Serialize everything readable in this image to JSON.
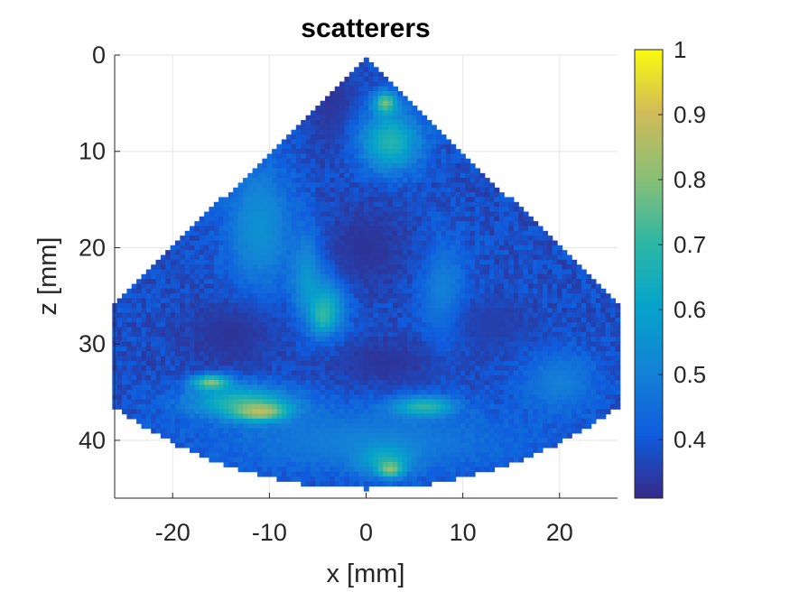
{
  "chart_data": {
    "type": "heatmap",
    "title": "scatterers",
    "xlabel": "x [mm]",
    "ylabel": "z [mm]",
    "xlim": [
      -26,
      26
    ],
    "ylim": [
      0,
      46
    ],
    "y_reversed": true,
    "grid": true,
    "x_ticks": [
      -20,
      -10,
      0,
      10,
      20
    ],
    "y_ticks": [
      0,
      10,
      20,
      30,
      40
    ],
    "x_tick_labels": [
      "-20",
      "-10",
      "0",
      "10",
      "20"
    ],
    "y_tick_labels": [
      "0",
      "10",
      "20",
      "30",
      "40"
    ],
    "colorbar": {
      "colormap": "parula",
      "range": [
        0.31,
        1.0
      ],
      "ticks": [
        0.4,
        0.5,
        0.6,
        0.7,
        0.8,
        0.9,
        1
      ],
      "tick_labels": [
        "0.4",
        "0.5",
        "0.6",
        "0.7",
        "0.8",
        "0.9",
        "1"
      ]
    },
    "sector": {
      "apex_x_mm": 0,
      "apex_z_mm": 0.5,
      "half_angle_deg": 46,
      "max_radius_mm": 44.5,
      "background_value": 0.38
    },
    "regions": [
      {
        "label": "upper-left dark strip",
        "x": -3.5,
        "z": 5,
        "rx": 3.5,
        "rz": 7,
        "value": 0.33
      },
      {
        "label": "upper bright band",
        "x": 2.5,
        "z": 9,
        "rx": 4,
        "rz": 4,
        "value": 0.68
      },
      {
        "label": "upper hot spot",
        "x": 2,
        "z": 5,
        "rx": 1.5,
        "rz": 1.5,
        "value": 0.78
      },
      {
        "label": "left wall",
        "x": -11,
        "z": 18,
        "rx": 4.5,
        "rz": 9,
        "value": 0.55
      },
      {
        "label": "septum left",
        "x": -6,
        "z": 23,
        "rx": 2,
        "rz": 6,
        "value": 0.6
      },
      {
        "label": "septum",
        "x": -4,
        "z": 26,
        "rx": 2.5,
        "rz": 4,
        "value": 0.68
      },
      {
        "label": "septum bright",
        "x": -4.5,
        "z": 27,
        "rx": 1.2,
        "rz": 2,
        "value": 0.75
      },
      {
        "label": "right chamber wall",
        "x": 8,
        "z": 25,
        "rx": 3,
        "rz": 7,
        "value": 0.52
      },
      {
        "label": "left cavity",
        "x": -14,
        "z": 29,
        "rx": 7,
        "rz": 5,
        "value": 0.33
      },
      {
        "label": "centre cavity",
        "x": 0,
        "z": 20,
        "rx": 6,
        "rz": 6,
        "value": 0.33
      },
      {
        "label": "lower cavity",
        "x": 2,
        "z": 32,
        "rx": 8,
        "rz": 3.5,
        "value": 0.33
      },
      {
        "label": "right cavity",
        "x": 13,
        "z": 28,
        "rx": 6,
        "rz": 4,
        "value": 0.35
      },
      {
        "label": "bottom band",
        "x": 0,
        "z": 40,
        "rx": 20,
        "rz": 4.5,
        "value": 0.5
      },
      {
        "label": "left bottom bright",
        "x": -13,
        "z": 36,
        "rx": 7,
        "rz": 2.2,
        "value": 0.68
      },
      {
        "label": "left hot streak",
        "x": -11,
        "z": 37,
        "rx": 3.5,
        "rz": 1.2,
        "value": 0.88
      },
      {
        "label": "left hot streak 2",
        "x": -16,
        "z": 34,
        "rx": 2.5,
        "rz": 1,
        "value": 0.8
      },
      {
        "label": "centre bottom bright",
        "x": 6,
        "z": 36.5,
        "rx": 4,
        "rz": 1.3,
        "value": 0.7
      },
      {
        "label": "bottom centre spot",
        "x": 2,
        "z": 42,
        "rx": 3.5,
        "rz": 2,
        "value": 0.65
      },
      {
        "label": "bottom centre hot",
        "x": 2.5,
        "z": 43,
        "rx": 1.5,
        "rz": 1,
        "value": 0.82
      },
      {
        "label": "right edge bright",
        "x": 20,
        "z": 34,
        "rx": 5,
        "rz": 4,
        "value": 0.5
      }
    ]
  }
}
